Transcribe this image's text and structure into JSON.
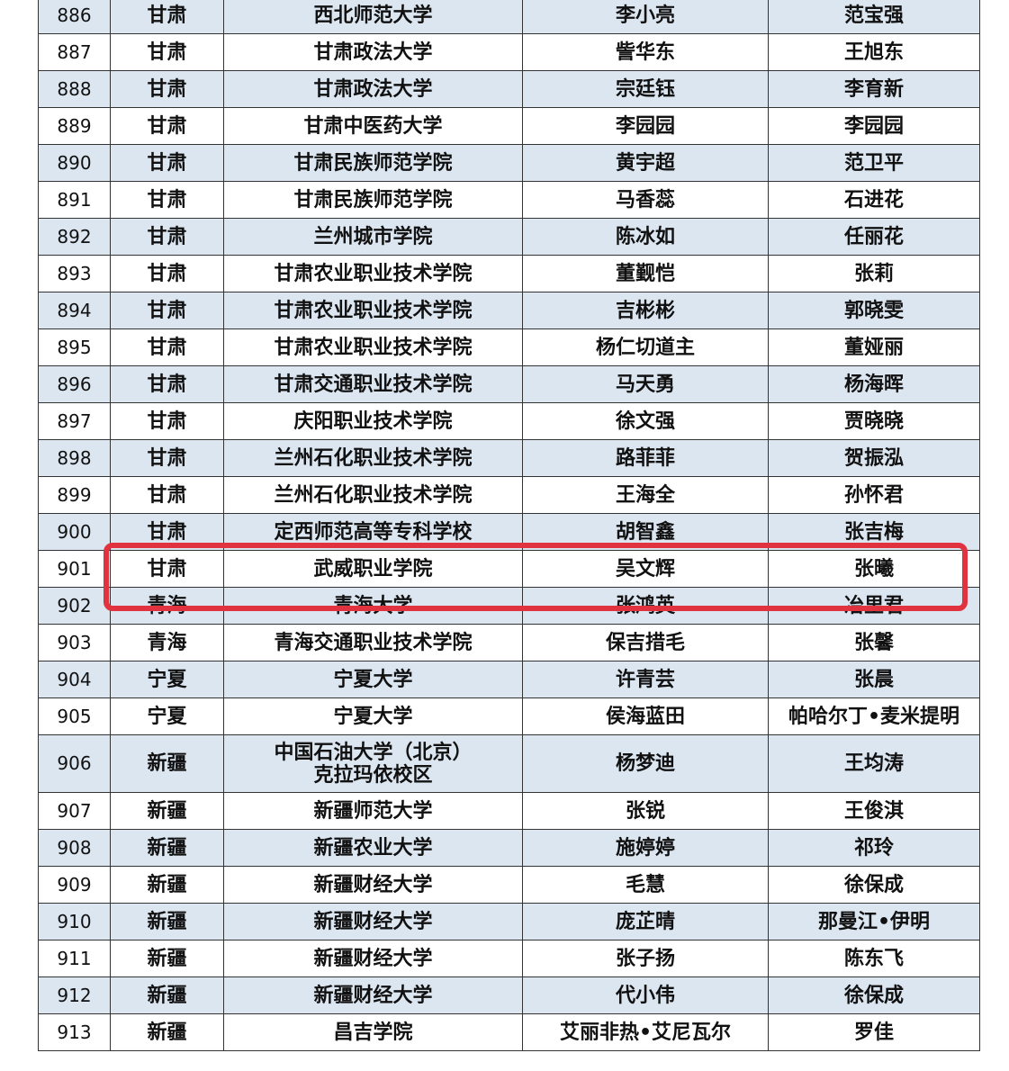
{
  "rows": [
    {
      "no": "886",
      "province": "甘肃",
      "school": "西北师范大学",
      "person1": "李小亮",
      "person2": "范宝强"
    },
    {
      "no": "887",
      "province": "甘肃",
      "school": "甘肃政法大学",
      "person1": "訾华东",
      "person2": "王旭东"
    },
    {
      "no": "888",
      "province": "甘肃",
      "school": "甘肃政法大学",
      "person1": "宗廷钰",
      "person2": "李育新"
    },
    {
      "no": "889",
      "province": "甘肃",
      "school": "甘肃中医药大学",
      "person1": "李园园",
      "person2": "李园园"
    },
    {
      "no": "890",
      "province": "甘肃",
      "school": "甘肃民族师范学院",
      "person1": "黄宇超",
      "person2": "范卫平"
    },
    {
      "no": "891",
      "province": "甘肃",
      "school": "甘肃民族师范学院",
      "person1": "马香蕊",
      "person2": "石进花"
    },
    {
      "no": "892",
      "province": "甘肃",
      "school": "兰州城市学院",
      "person1": "陈冰如",
      "person2": "任丽花"
    },
    {
      "no": "893",
      "province": "甘肃",
      "school": "甘肃农业职业技术学院",
      "person1": "董觐恺",
      "person2": "张莉"
    },
    {
      "no": "894",
      "province": "甘肃",
      "school": "甘肃农业职业技术学院",
      "person1": "吉彬彬",
      "person2": "郭晓雯"
    },
    {
      "no": "895",
      "province": "甘肃",
      "school": "甘肃农业职业技术学院",
      "person1": "杨仁切道主",
      "person2": "董娅丽"
    },
    {
      "no": "896",
      "province": "甘肃",
      "school": "甘肃交通职业技术学院",
      "person1": "马天勇",
      "person2": "杨海晖"
    },
    {
      "no": "897",
      "province": "甘肃",
      "school": "庆阳职业技术学院",
      "person1": "徐文强",
      "person2": "贾晓晓"
    },
    {
      "no": "898",
      "province": "甘肃",
      "school": "兰州石化职业技术学院",
      "person1": "路菲菲",
      "person2": "贺振泓"
    },
    {
      "no": "899",
      "province": "甘肃",
      "school": "兰州石化职业技术学院",
      "person1": "王海全",
      "person2": "孙怀君"
    },
    {
      "no": "900",
      "province": "甘肃",
      "school": "定西师范高等专科学校",
      "person1": "胡智鑫",
      "person2": "张吉梅"
    },
    {
      "no": "901",
      "province": "甘肃",
      "school": "武威职业学院",
      "person1": "吴文辉",
      "person2": "张曦"
    },
    {
      "no": "902",
      "province": "青海",
      "school": "青海大学",
      "person1": "张鸿英",
      "person2": "冶里君"
    },
    {
      "no": "903",
      "province": "青海",
      "school": "青海交通职业技术学院",
      "person1": "保吉措毛",
      "person2": "张馨"
    },
    {
      "no": "904",
      "province": "宁夏",
      "school": "宁夏大学",
      "person1": "许青芸",
      "person2": "张晨"
    },
    {
      "no": "905",
      "province": "宁夏",
      "school": "宁夏大学",
      "person1": "侯海蓝田",
      "person2": "帕哈尔丁•麦米提明"
    },
    {
      "no": "906",
      "province": "新疆",
      "school": "中国石油大学（北京）克拉玛依校区",
      "person1": "杨梦迪",
      "person2": "王均涛"
    },
    {
      "no": "907",
      "province": "新疆",
      "school": "新疆师范大学",
      "person1": "张锐",
      "person2": "王俊淇"
    },
    {
      "no": "908",
      "province": "新疆",
      "school": "新疆农业大学",
      "person1": "施婷婷",
      "person2": "祁玲"
    },
    {
      "no": "909",
      "province": "新疆",
      "school": "新疆财经大学",
      "person1": "毛慧",
      "person2": "徐保成"
    },
    {
      "no": "910",
      "province": "新疆",
      "school": "新疆财经大学",
      "person1": "庞芷晴",
      "person2": "那曼江•伊明"
    },
    {
      "no": "911",
      "province": "新疆",
      "school": "新疆财经大学",
      "person1": "张子扬",
      "person2": "陈东飞"
    },
    {
      "no": "912",
      "province": "新疆",
      "school": "新疆财经大学",
      "person1": "代小伟",
      "person2": "徐保成"
    },
    {
      "no": "913",
      "province": "新疆",
      "school": "昌吉学院",
      "person1": "艾丽非热•艾尼瓦尔",
      "person2": "罗佳"
    }
  ],
  "highlighted_row": "901",
  "colors": {
    "alt_row": "#dce6f1",
    "highlight": "#e0333f"
  }
}
